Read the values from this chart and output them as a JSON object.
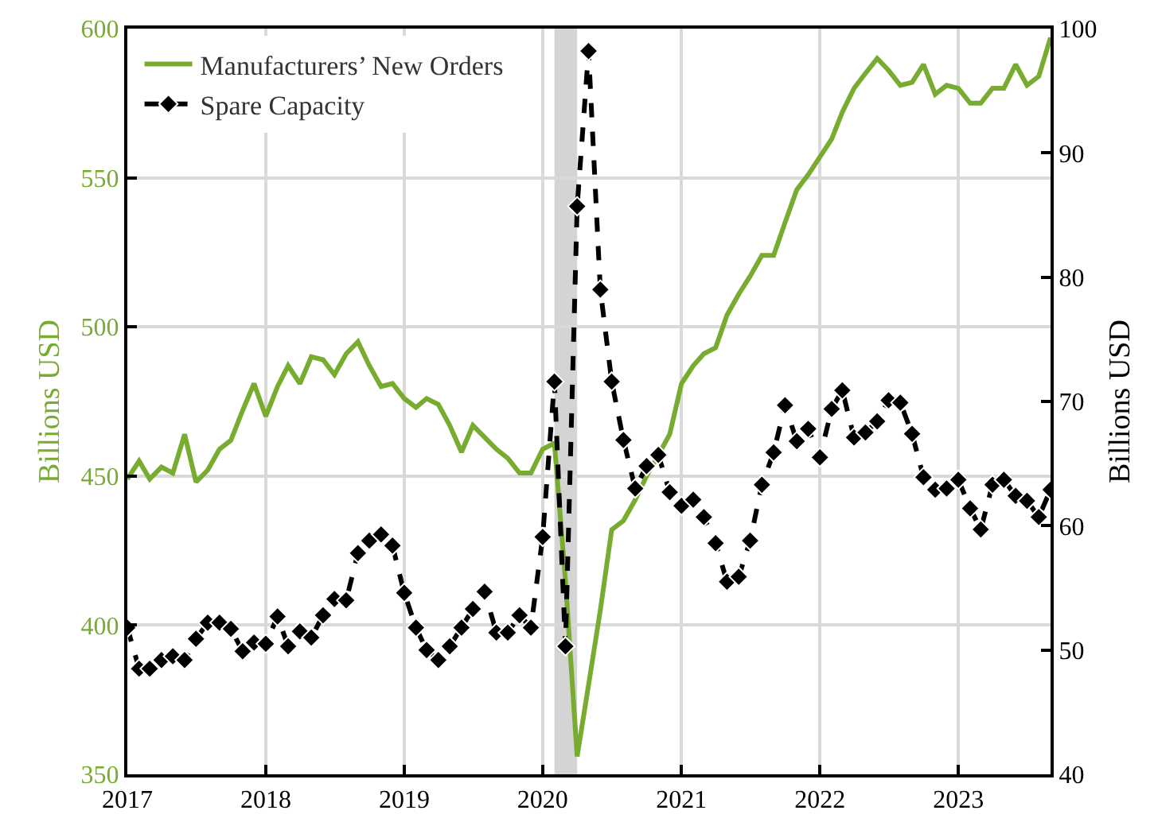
{
  "chart_data": {
    "type": "line",
    "ylabel": "Billions USD",
    "y2label": "Billions USD",
    "x": [
      "2017-01",
      "2017-02",
      "2017-03",
      "2017-04",
      "2017-05",
      "2017-06",
      "2017-07",
      "2017-08",
      "2017-09",
      "2017-10",
      "2017-11",
      "2017-12",
      "2018-01",
      "2018-02",
      "2018-03",
      "2018-04",
      "2018-05",
      "2018-06",
      "2018-07",
      "2018-08",
      "2018-09",
      "2018-10",
      "2018-11",
      "2018-12",
      "2019-01",
      "2019-02",
      "2019-03",
      "2019-04",
      "2019-05",
      "2019-06",
      "2019-07",
      "2019-08",
      "2019-09",
      "2019-10",
      "2019-11",
      "2019-12",
      "2020-01",
      "2020-02",
      "2020-03",
      "2020-04",
      "2020-05",
      "2020-06",
      "2020-07",
      "2020-08",
      "2020-09",
      "2020-10",
      "2020-11",
      "2020-12",
      "2021-01",
      "2021-02",
      "2021-03",
      "2021-04",
      "2021-05",
      "2021-06",
      "2021-07",
      "2021-08",
      "2021-09",
      "2021-10",
      "2021-11",
      "2021-12",
      "2022-01",
      "2022-02",
      "2022-03",
      "2022-04",
      "2022-05",
      "2022-06",
      "2022-07",
      "2022-08",
      "2022-09",
      "2022-10",
      "2022-11",
      "2022-12",
      "2023-01",
      "2023-02",
      "2023-03",
      "2023-04",
      "2023-05",
      "2023-06",
      "2023-07",
      "2023-08",
      "2023-09"
    ],
    "series": [
      {
        "name": "Manufacturers’ New Orders",
        "color": "#77ac30",
        "marker": "none",
        "line_style": "solid",
        "values": [
          449,
          455,
          449,
          453,
          451,
          464,
          448,
          452,
          459,
          462,
          472,
          481,
          470,
          480,
          487,
          481,
          490,
          489,
          484,
          491,
          495,
          487,
          480,
          481,
          476,
          473,
          476,
          474,
          467,
          458,
          467,
          463,
          459,
          456,
          451,
          451,
          459,
          461,
          415,
          356,
          380,
          405,
          432,
          435,
          442,
          450,
          457,
          464,
          481,
          487,
          491,
          493,
          504,
          511,
          517,
          524,
          524,
          535,
          546,
          551,
          557,
          563,
          572,
          580,
          585,
          590,
          586,
          581,
          582,
          588,
          578,
          581,
          580,
          575,
          575,
          580,
          580,
          588,
          581,
          584,
          597
        ]
      },
      {
        "name": "Spare Capacity",
        "color": "#000000",
        "axis": "y2",
        "marker": "diamond",
        "line_style": "dashed",
        "values": [
          51.8,
          48.5,
          48.5,
          49.2,
          49.5,
          49.2,
          50.9,
          52.2,
          52.2,
          51.7,
          49.9,
          50.6,
          50.5,
          52.7,
          50.3,
          51.5,
          51.0,
          52.8,
          54.1,
          54.0,
          57.8,
          58.8,
          59.3,
          58.4,
          54.6,
          51.8,
          50.0,
          49.2,
          50.3,
          51.8,
          53.3,
          54.7,
          51.4,
          51.4,
          52.8,
          51.8,
          59.1,
          71.6,
          50.3,
          85.7,
          98.2,
          79.0,
          71.6,
          66.9,
          63.0,
          64.8,
          65.7,
          62.7,
          61.6,
          62.1,
          60.7,
          58.6,
          55.5,
          55.9,
          58.8,
          63.3,
          65.9,
          69.7,
          66.8,
          67.8,
          65.5,
          69.4,
          70.9,
          67.1,
          67.5,
          68.4,
          70.1,
          69.9,
          67.4,
          63.9,
          62.9,
          63.0,
          63.7,
          61.4,
          59.7,
          63.3,
          63.7,
          62.4,
          62.0,
          60.7,
          62.9
        ]
      }
    ],
    "xlim": [
      "2017-01",
      "2023-09"
    ],
    "xticks": [
      "2017",
      "2018",
      "2019",
      "2020",
      "2021",
      "2022",
      "2023"
    ],
    "ylim": [
      350,
      600
    ],
    "yticks": [
      350,
      400,
      450,
      500,
      550,
      600
    ],
    "y2lim": [
      40,
      100
    ],
    "y2ticks": [
      40,
      50,
      60,
      70,
      80,
      90,
      100
    ],
    "bands": [
      {
        "axis": "x",
        "from": "2020-02",
        "to": "2020-04",
        "color": "#d4d4d4"
      }
    ],
    "grid": true,
    "legend": "top left"
  }
}
